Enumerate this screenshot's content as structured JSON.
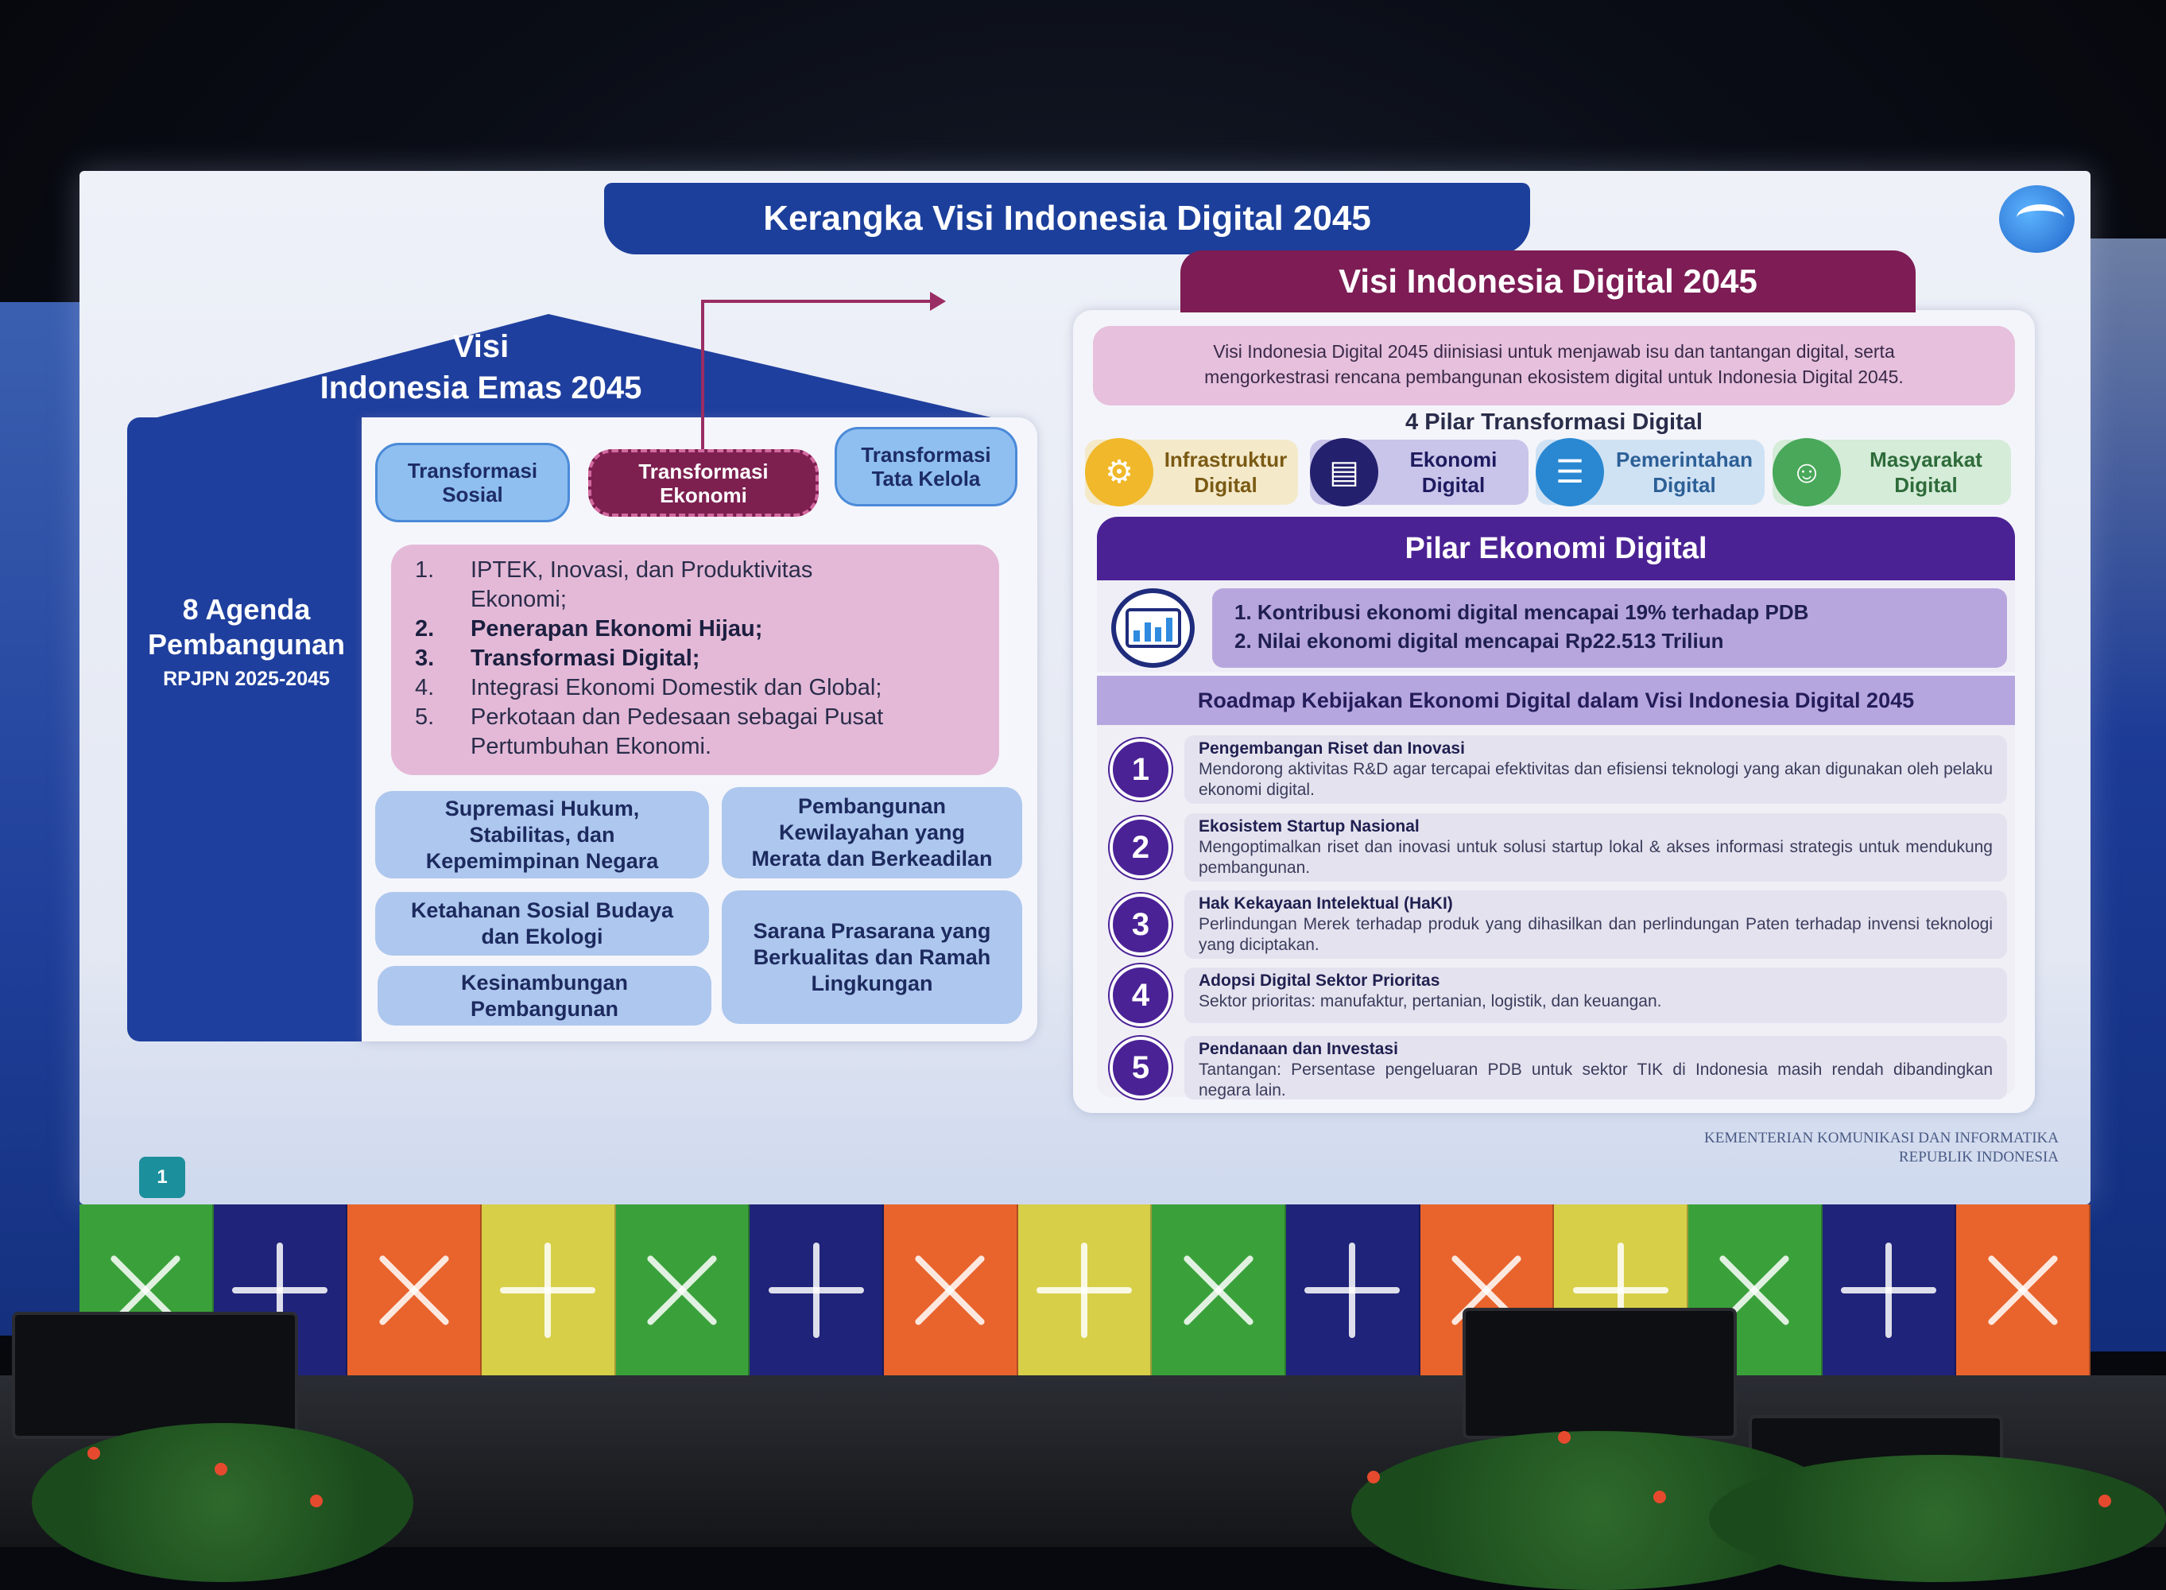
{
  "slide": {
    "title": "Kerangka Visi Indonesia Digital 2045",
    "page_number": "1",
    "footer_org": [
      "KEMENTERIAN KOMUNIKASI DAN INFORMATIKA",
      "REPUBLIK INDONESIA"
    ]
  },
  "left": {
    "roof_title": [
      "Visi",
      "Indonesia Emas 2045"
    ],
    "agenda_title": [
      "8 Agenda",
      "Pembangunan"
    ],
    "agenda_sub": "RPJPN 2025-2045",
    "transformasi": [
      {
        "label": [
          "Transformasi",
          "Sosial"
        ]
      },
      {
        "label": [
          "Transformasi",
          "Ekonomi"
        ]
      },
      {
        "label": [
          "Transformasi",
          "Tata Kelola"
        ]
      }
    ],
    "economy_points": [
      {
        "num": "1.",
        "text": "IPTEK, Inovasi, dan Produktivitas",
        "bold": false
      },
      {
        "num": "",
        "text": "Ekonomi;",
        "bold": false
      },
      {
        "num": "2.",
        "text": "Penerapan Ekonomi Hijau;",
        "bold": true
      },
      {
        "num": "3.",
        "text": "Transformasi Digital;",
        "bold": true
      },
      {
        "num": "4.",
        "text": "Integrasi Ekonomi Domestik dan Global;",
        "bold": false
      },
      {
        "num": "5.",
        "text": "Perkotaan dan Pedesaan sebagai Pusat",
        "bold": false
      },
      {
        "num": "",
        "text": "Pertumbuhan Ekonomi.",
        "bold": false
      }
    ],
    "blocks": [
      [
        "Supremasi Hukum,",
        "Stabilitas, dan",
        "Kepemimpinan Negara"
      ],
      [
        "Pembangunan",
        "Kewilayahan yang",
        "Merata dan Berkeadilan"
      ],
      [
        "Ketahanan Sosial Budaya",
        "dan Ekologi"
      ],
      [
        "Sarana Prasarana yang",
        "Berkualitas dan Ramah",
        "Lingkungan"
      ],
      [
        "Kesinambungan",
        "Pembangunan"
      ]
    ]
  },
  "right": {
    "visi_title": "Visi Indonesia Digital 2045",
    "intro": [
      "Visi Indonesia Digital 2045 diinisiasi untuk menjawab isu dan tantangan digital, serta",
      "mengorkestrasi rencana pembangunan ekosistem digital untuk Indonesia Digital 2045."
    ],
    "pilar_title": "4 Pilar Transformasi Digital",
    "pilar": [
      {
        "label": [
          "Infrastruktur",
          "Digital"
        ],
        "icon": "infrastructure-icon",
        "bg": "#f4e9c9",
        "icon_bg": "#f0b82a",
        "color": "#7a5a14"
      },
      {
        "label": [
          "Ekonomi",
          "Digital"
        ],
        "icon": "economy-icon",
        "bg": "#c9c4ea",
        "icon_bg": "#23206e",
        "color": "#1d1a5e"
      },
      {
        "label": [
          "Pemerintahan",
          "Digital"
        ],
        "icon": "government-icon",
        "bg": "#cfe2f4",
        "icon_bg": "#2a88d2",
        "color": "#2c5f96"
      },
      {
        "label": [
          "Masyarakat",
          "Digital"
        ],
        "icon": "society-icon",
        "bg": "#d4ecd8",
        "icon_bg": "#49a85a",
        "color": "#2e6b3a"
      }
    ],
    "ekonomi_title": "Pilar Ekonomi Digital",
    "targets": [
      "1. Kontribusi ekonomi digital mencapai 19% terhadap PDB",
      "2. Nilai ekonomi digital mencapai Rp22.513 Triliun"
    ],
    "roadmap_title": "Roadmap Kebijakan Ekonomi Digital dalam Visi Indonesia Digital 2045",
    "roadmap": [
      {
        "num": "1",
        "title": "Pengembangan Riset dan Inovasi",
        "desc": "Mendorong aktivitas R&D agar tercapai efektivitas dan efisiensi teknologi yang akan digunakan oleh pelaku ekonomi digital."
      },
      {
        "num": "2",
        "title": "Ekosistem Startup Nasional",
        "desc": "Mengoptimalkan riset dan inovasi untuk solusi startup lokal & akses informasi strategis untuk mendukung pembangunan."
      },
      {
        "num": "3",
        "title": "Hak Kekayaan Intelektual (HaKI)",
        "desc": "Perlindungan Merek terhadap produk yang dihasilkan dan perlindungan Paten terhadap invensi teknologi yang diciptakan."
      },
      {
        "num": "4",
        "title": "Adopsi Digital Sektor Prioritas",
        "desc": "Sektor prioritas: manufaktur, pertanian, logistik, dan keuangan."
      },
      {
        "num": "5",
        "title": "Pendanaan dan Investasi",
        "desc": "Tantangan: Persentase pengeluaran PDB untuk sektor TIK di Indonesia masih rendah dibandingkan negara lain."
      }
    ]
  },
  "flags": [
    {
      "color": "#3aa13a",
      "pin": "x"
    },
    {
      "color": "#1f237a",
      "pin": "plus"
    },
    {
      "color": "#e8642c",
      "pin": "x"
    },
    {
      "color": "#d7cf48",
      "pin": "plus"
    },
    {
      "color": "#3aa13a",
      "pin": "x"
    },
    {
      "color": "#1f237a",
      "pin": "plus"
    },
    {
      "color": "#e8642c",
      "pin": "x"
    },
    {
      "color": "#d7cf48",
      "pin": "plus"
    },
    {
      "color": "#3aa13a",
      "pin": "x"
    },
    {
      "color": "#1f237a",
      "pin": "plus"
    },
    {
      "color": "#e8642c",
      "pin": "x"
    },
    {
      "color": "#d7cf48",
      "pin": "plus"
    },
    {
      "color": "#3aa13a",
      "pin": "x"
    },
    {
      "color": "#1f237a",
      "pin": "plus"
    },
    {
      "color": "#e8642c",
      "pin": "x"
    }
  ]
}
